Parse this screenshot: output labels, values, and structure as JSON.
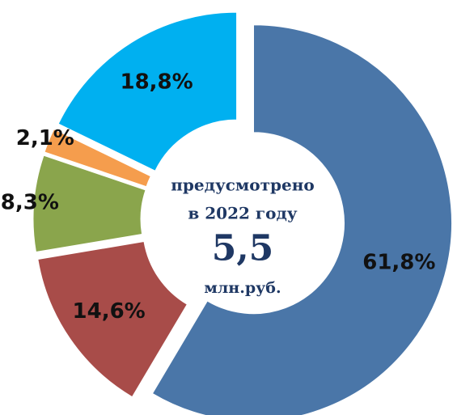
{
  "chart_data": {
    "type": "donut",
    "categories": [
      null,
      null,
      null,
      null,
      null
    ],
    "values": [
      61.8,
      14.6,
      8.3,
      2.1,
      18.8
    ],
    "value_labels": [
      "61,8%",
      "14,6%",
      "8,3%",
      "2,1%",
      "18,8%"
    ],
    "colors": [
      "#4a76a8",
      "#a84c49",
      "#8aa54c",
      "#f59d4d",
      "#00b0f0"
    ],
    "center_text": [
      "предусмотрено",
      "в 2022 году"
    ],
    "center_value": {
      "value": 5.5,
      "label": "5,5"
    },
    "center_unit": "млн.руб."
  }
}
